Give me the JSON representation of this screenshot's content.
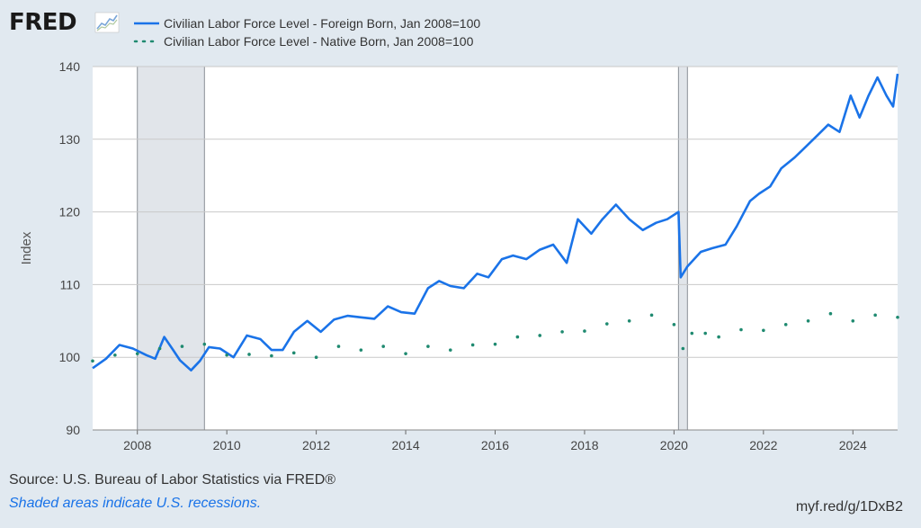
{
  "brand": {
    "logo_text": "FRED",
    "logo_icon": "line-chart-icon"
  },
  "footer": {
    "source": "Source: U.S. Bureau of Labor Statistics via FRED®",
    "recession_note": "Shaded areas indicate U.S. recessions.",
    "short_url": "myf.red/g/1DxB2"
  },
  "colors": {
    "foreign_line": "#1a73e8",
    "native_dots": "#1f8a70",
    "recession_fill": "#e1e5ea",
    "plot_bg": "#ffffff",
    "page_bg": "#e1e9f0",
    "grid": "#c9c9c9"
  },
  "chart_data": {
    "type": "line",
    "title": "",
    "xlabel": "",
    "ylabel": "Index",
    "xlim": [
      2007.0,
      2025.0
    ],
    "ylim": [
      90,
      140
    ],
    "yticks": [
      90,
      100,
      110,
      120,
      130,
      140
    ],
    "xticks": [
      2008,
      2010,
      2012,
      2014,
      2016,
      2018,
      2020,
      2022,
      2024
    ],
    "grid": true,
    "legend_position": "top-left",
    "recessions": [
      {
        "start": 2008.0,
        "end": 2009.5
      },
      {
        "start": 2020.1,
        "end": 2020.3
      }
    ],
    "series": [
      {
        "name": "Civilian Labor Force Level - Foreign Born, Jan 2008=100",
        "style": "solid",
        "x": [
          2007.0,
          2007.3,
          2007.6,
          2007.9,
          2008.2,
          2008.4,
          2008.6,
          2008.8,
          2008.95,
          2009.2,
          2009.4,
          2009.6,
          2009.85,
          2010.15,
          2010.45,
          2010.75,
          2011.0,
          2011.25,
          2011.5,
          2011.8,
          2012.1,
          2012.4,
          2012.7,
          2013.0,
          2013.3,
          2013.6,
          2013.9,
          2014.2,
          2014.5,
          2014.75,
          2015.0,
          2015.3,
          2015.6,
          2015.85,
          2016.15,
          2016.4,
          2016.7,
          2017.0,
          2017.3,
          2017.6,
          2017.85,
          2018.15,
          2018.4,
          2018.7,
          2019.0,
          2019.3,
          2019.6,
          2019.85,
          2020.1,
          2020.15,
          2020.3,
          2020.6,
          2020.85,
          2021.15,
          2021.4,
          2021.7,
          2021.9,
          2022.15,
          2022.4,
          2022.7,
          2022.95,
          2023.2,
          2023.45,
          2023.7,
          2023.95,
          2024.15,
          2024.35,
          2024.55,
          2024.75,
          2024.9,
          2025.0
        ],
        "values": [
          98.5,
          99.8,
          101.7,
          101.2,
          100.3,
          99.8,
          102.8,
          101.0,
          99.6,
          98.2,
          99.5,
          101.4,
          101.2,
          100.0,
          103.0,
          102.5,
          101.0,
          101.0,
          103.5,
          105.0,
          103.5,
          105.2,
          105.7,
          105.5,
          105.3,
          107.0,
          106.2,
          106.0,
          109.5,
          110.5,
          109.8,
          109.5,
          111.5,
          111.0,
          113.5,
          114.0,
          113.5,
          114.8,
          115.5,
          113.0,
          119.0,
          117.0,
          119.0,
          121.0,
          119.0,
          117.5,
          118.5,
          119.0,
          120.0,
          111.0,
          112.5,
          114.5,
          115.0,
          115.5,
          118.0,
          121.5,
          122.5,
          123.5,
          126.0,
          127.5,
          129.0,
          130.5,
          132.0,
          131.0,
          136.0,
          133.0,
          136.0,
          138.5,
          136.0,
          134.5,
          139.0
        ]
      },
      {
        "name": "Civilian Labor Force Level - Native Born, Jan 2008=100",
        "style": "dotted",
        "x": [
          2007.0,
          2007.5,
          2008.0,
          2008.5,
          2009.0,
          2009.5,
          2010.0,
          2010.5,
          2011.0,
          2011.5,
          2012.0,
          2012.5,
          2013.0,
          2013.5,
          2014.0,
          2014.5,
          2015.0,
          2015.5,
          2016.0,
          2016.5,
          2017.0,
          2017.5,
          2018.0,
          2018.5,
          2019.0,
          2019.5,
          2020.0,
          2020.2,
          2020.4,
          2020.7,
          2021.0,
          2021.5,
          2022.0,
          2022.5,
          2023.0,
          2023.5,
          2024.0,
          2024.5,
          2025.0
        ],
        "values": [
          99.5,
          100.3,
          100.5,
          101.2,
          101.5,
          101.8,
          100.3,
          100.4,
          100.2,
          100.6,
          100.0,
          101.5,
          101.0,
          101.5,
          100.5,
          101.5,
          101.0,
          101.7,
          101.8,
          102.8,
          103.0,
          103.5,
          103.6,
          104.6,
          105.0,
          105.8,
          104.5,
          101.2,
          103.3,
          103.3,
          102.8,
          103.8,
          103.7,
          104.5,
          105.0,
          106.0,
          105.0,
          105.8,
          105.5
        ]
      }
    ]
  }
}
